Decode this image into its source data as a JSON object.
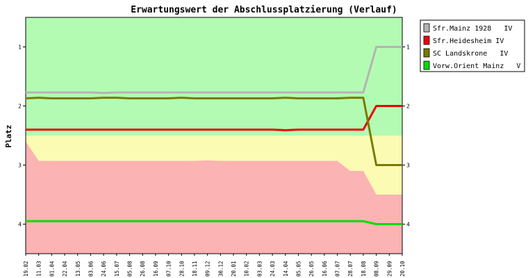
{
  "chart_data": {
    "type": "line",
    "title": "Erwartungswert der Abschlussplatzierung (Verlauf)",
    "ylabel": "Platz",
    "xlabel": "",
    "ylim": [
      0.5,
      4.5
    ],
    "y_ticks": [
      1,
      2,
      3,
      4
    ],
    "y_ticks_right": [
      1,
      2,
      3,
      4
    ],
    "inverted_y": true,
    "grid": false,
    "legend_position": "right",
    "categories": [
      "19.02",
      "11.03",
      "01.04",
      "22.04",
      "13.05",
      "03.06",
      "24.06",
      "15.07",
      "05.08",
      "26.08",
      "16.09",
      "07.10",
      "28.10",
      "18.11",
      "09.12",
      "30.12",
      "20.01",
      "10.02",
      "03.03",
      "24.03",
      "14.04",
      "05.05",
      "26.05",
      "16.06",
      "07.07",
      "28.07",
      "18.08",
      "08.09",
      "29.09",
      "20.10"
    ],
    "zones": [
      {
        "color": "#b3fbb3",
        "lower": [
          2.5,
          2.5,
          2.5,
          2.5,
          2.5,
          2.5,
          2.5,
          2.5,
          2.5,
          2.5,
          2.5,
          2.5,
          2.5,
          2.5,
          2.5,
          2.5,
          2.5,
          2.5,
          2.5,
          2.5,
          2.5,
          2.5,
          2.5,
          2.5,
          2.5,
          2.5,
          2.5,
          2.5,
          2.5,
          2.5
        ]
      },
      {
        "color": "#fbfbb3",
        "lower": [
          2.6,
          2.93,
          2.93,
          2.93,
          2.93,
          2.93,
          2.93,
          2.93,
          2.93,
          2.93,
          2.93,
          2.93,
          2.93,
          2.93,
          2.92,
          2.93,
          2.93,
          2.93,
          2.93,
          2.93,
          2.93,
          2.93,
          2.93,
          2.93,
          2.93,
          3.1,
          3.1,
          3.5,
          3.5,
          3.5
        ]
      },
      {
        "color": "#fbb3b3",
        "lower": [
          4.5,
          4.5,
          4.5,
          4.5,
          4.5,
          4.5,
          4.5,
          4.5,
          4.5,
          4.5,
          4.5,
          4.5,
          4.5,
          4.5,
          4.5,
          4.5,
          4.5,
          4.5,
          4.5,
          4.5,
          4.5,
          4.5,
          4.5,
          4.5,
          4.5,
          4.5,
          4.5,
          4.5,
          4.5,
          4.5
        ]
      }
    ],
    "series": [
      {
        "name": "Sfr.Mainz 1928   IV",
        "color": "#b4b4b4",
        "values": [
          1.77,
          1.77,
          1.77,
          1.77,
          1.77,
          1.77,
          1.78,
          1.77,
          1.77,
          1.77,
          1.77,
          1.77,
          1.77,
          1.77,
          1.77,
          1.77,
          1.77,
          1.77,
          1.77,
          1.77,
          1.77,
          1.77,
          1.77,
          1.77,
          1.77,
          1.77,
          1.77,
          1.0,
          1.0,
          1.0
        ]
      },
      {
        "name": "Sfr.Heidesheim IV",
        "color": "#ee0000",
        "values": [
          2.4,
          2.4,
          2.4,
          2.4,
          2.4,
          2.4,
          2.4,
          2.4,
          2.4,
          2.4,
          2.4,
          2.4,
          2.4,
          2.4,
          2.4,
          2.4,
          2.4,
          2.4,
          2.4,
          2.4,
          2.41,
          2.4,
          2.4,
          2.4,
          2.4,
          2.4,
          2.4,
          2.0,
          2.0,
          2.0
        ]
      },
      {
        "name": "SC Landskrone   IV",
        "color": "#7a7a00",
        "values": [
          1.87,
          1.86,
          1.87,
          1.87,
          1.87,
          1.87,
          1.86,
          1.86,
          1.87,
          1.87,
          1.87,
          1.87,
          1.86,
          1.87,
          1.87,
          1.87,
          1.87,
          1.87,
          1.87,
          1.87,
          1.86,
          1.87,
          1.87,
          1.87,
          1.87,
          1.86,
          1.86,
          3.0,
          3.0,
          3.0
        ]
      },
      {
        "name": "Vorw.Orient Mainz   V",
        "color": "#00dd00",
        "values": [
          3.95,
          3.95,
          3.95,
          3.95,
          3.95,
          3.95,
          3.95,
          3.95,
          3.95,
          3.95,
          3.95,
          3.95,
          3.95,
          3.95,
          3.95,
          3.95,
          3.95,
          3.95,
          3.95,
          3.95,
          3.95,
          3.95,
          3.95,
          3.95,
          3.95,
          3.95,
          3.95,
          4.0,
          4.0,
          4.0
        ]
      }
    ]
  }
}
